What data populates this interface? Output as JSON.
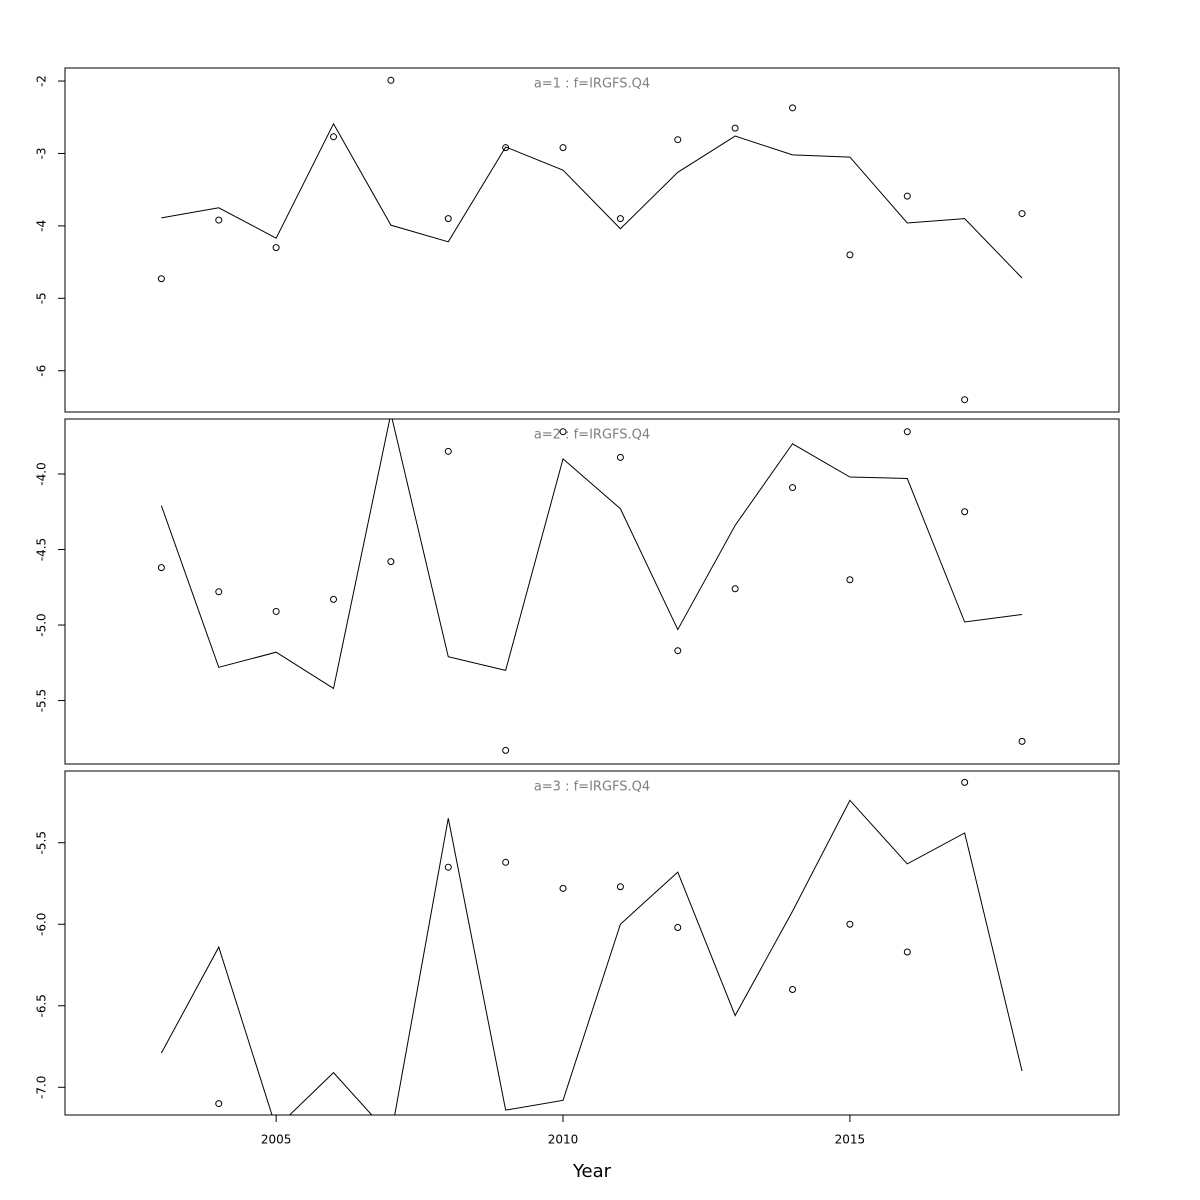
{
  "chart_data": [
    {
      "type": "line",
      "title": "a=1  :  f=IRGFS.Q4",
      "x": [
        2003,
        2004,
        2005,
        2006,
        2007,
        2008,
        2009,
        2010,
        2011,
        2012,
        2013,
        2014,
        2015,
        2016,
        2017,
        2018
      ],
      "series": [
        {
          "style": "line",
          "color": "#000000",
          "values": [
            -3.89,
            -3.75,
            -4.17,
            -2.59,
            -3.99,
            -4.22,
            -2.91,
            -3.23,
            -4.04,
            -3.26,
            -2.76,
            -3.02,
            -3.05,
            -3.96,
            -3.9,
            -4.72
          ]
        },
        {
          "style": "points",
          "color": "#000000",
          "values": [
            -4.73,
            -3.92,
            -4.3,
            -2.77,
            -1.99,
            -3.9,
            -2.92,
            -2.92,
            -3.9,
            -2.81,
            -2.65,
            -2.37,
            -4.4,
            -3.59,
            -6.4,
            -3.83
          ]
        }
      ],
      "xlim": [
        2001.32,
        2019.69
      ],
      "ylim": [
        -6.57,
        -1.82
      ],
      "yticks": [
        -6,
        -5,
        -4,
        -3,
        -2
      ]
    },
    {
      "type": "line",
      "title": "a=2  :  f=IRGFS.Q4",
      "x": [
        2003,
        2004,
        2005,
        2006,
        2007,
        2008,
        2009,
        2010,
        2011,
        2012,
        2013,
        2014,
        2015,
        2016,
        2017,
        2018
      ],
      "series": [
        {
          "style": "line",
          "color": "#000000",
          "values": [
            -4.21,
            -5.28,
            -5.18,
            -5.42,
            -3.6,
            -5.21,
            -5.3,
            -3.9,
            -4.23,
            -5.03,
            -4.34,
            -3.8,
            -4.02,
            -4.03,
            -4.98,
            -4.93
          ]
        },
        {
          "style": "points",
          "color": "#000000",
          "values": [
            -4.62,
            -4.78,
            -4.91,
            -4.83,
            -4.58,
            -3.85,
            -5.83,
            -3.72,
            -3.89,
            -5.17,
            -4.76,
            -4.09,
            -4.7,
            -3.72,
            -4.25,
            -5.77
          ]
        }
      ],
      "xlim": [
        2001.32,
        2019.69
      ],
      "ylim": [
        -5.92,
        -3.636
      ],
      "yticks": [
        {
          "value": -5.5,
          "label": "-5.5"
        },
        {
          "value": -5,
          "label": "-5.0"
        },
        {
          "value": -4.5,
          "label": "-4.5"
        },
        {
          "value": -4,
          "label": "-4.0"
        }
      ]
    },
    {
      "type": "line",
      "title": "a=3  :  f=IRGFS.Q4",
      "xlabel": "Year",
      "x": [
        2003,
        2004,
        2005,
        2006,
        2007,
        2008,
        2009,
        2010,
        2011,
        2012,
        2013,
        2014,
        2015,
        2016,
        2017,
        2018
      ],
      "series": [
        {
          "style": "line",
          "color": "#000000",
          "values": [
            -6.79,
            -6.14,
            -7.25,
            -6.91,
            -7.3,
            -5.35,
            -7.14,
            -7.08,
            -6.0,
            -5.68,
            -6.56,
            -5.92,
            -5.24,
            -5.63,
            -5.44,
            -6.9
          ]
        },
        {
          "style": "points",
          "color": "#000000",
          "values": [
            null,
            -7.1,
            null,
            null,
            null,
            -5.65,
            -5.62,
            -5.78,
            -5.77,
            -6.02,
            null,
            -6.4,
            -6.0,
            -6.17,
            -5.13,
            null
          ]
        }
      ],
      "xlim": [
        2001.32,
        2019.69
      ],
      "ylim": [
        -7.17,
        -5.06
      ],
      "yticks": [
        {
          "value": -7,
          "label": "-7.0"
        },
        {
          "value": -6.5,
          "label": "-6.5"
        },
        {
          "value": -6,
          "label": "-6.0"
        },
        {
          "value": -5.5,
          "label": "-5.5"
        }
      ],
      "xticks": [
        2005,
        2010,
        2015
      ]
    }
  ]
}
